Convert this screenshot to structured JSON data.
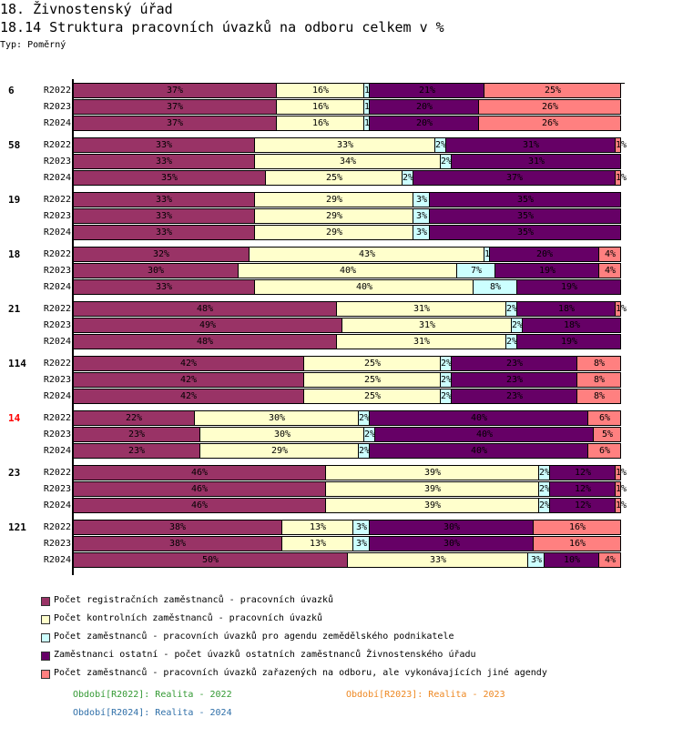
{
  "header": {
    "section_title": "18. Živnostenský úřad",
    "chart_title": "18.14 Struktura pracovních úvazků na odboru celkem v %",
    "type_label": "Typ: Poměrný"
  },
  "chart_data": {
    "type": "bar",
    "orientation": "horizontal",
    "stacking": "percent",
    "title": "18.14 Struktura pracovních úvazků na odboru celkem v %",
    "xlabel": "",
    "ylabel": "",
    "xlim": [
      0,
      100
    ],
    "value_suffix": "%",
    "grid": false,
    "legend_position": "bottom",
    "highlight_color": "#FF0000",
    "series": [
      {
        "name": "Počet registračních zaměstnanců - pracovních úvazků",
        "color": "#993366"
      },
      {
        "name": "Počet kontrolních zaměstnanců - pracovních úvazků",
        "color": "#FFFFCC"
      },
      {
        "name": "Počet zaměstnanců - pracovních úvazků pro agendu zemědělského podnikatele",
        "color": "#CCFFFF"
      },
      {
        "name": "Zaměstnanci ostatní - počet úvazků ostatních zaměstnanců Živnostenského úřadu",
        "color": "#660066"
      },
      {
        "name": "Počet zaměstnanců - pracovních úvazků zařazených na odboru, ale vykonávajících jiné agendy",
        "color": "#FF8080"
      }
    ],
    "groups": [
      {
        "label": "6",
        "highlight": false,
        "rows": [
          {
            "period": "R2022",
            "values": [
              37,
              16,
              1,
              21,
              25
            ]
          },
          {
            "period": "R2023",
            "values": [
              37,
              16,
              1,
              20,
              26
            ]
          },
          {
            "period": "R2024",
            "values": [
              37,
              16,
              1,
              20,
              26
            ]
          }
        ]
      },
      {
        "label": "58",
        "highlight": false,
        "rows": [
          {
            "period": "R2022",
            "values": [
              33,
              33,
              2,
              31,
              1
            ]
          },
          {
            "period": "R2023",
            "values": [
              33,
              34,
              2,
              31,
              0
            ]
          },
          {
            "period": "R2024",
            "values": [
              35,
              25,
              2,
              37,
              1
            ]
          }
        ]
      },
      {
        "label": "19",
        "highlight": false,
        "rows": [
          {
            "period": "R2022",
            "values": [
              33,
              29,
              3,
              35,
              0
            ]
          },
          {
            "period": "R2023",
            "values": [
              33,
              29,
              3,
              35,
              0
            ]
          },
          {
            "period": "R2024",
            "values": [
              33,
              29,
              3,
              35,
              0
            ]
          }
        ]
      },
      {
        "label": "18",
        "highlight": false,
        "rows": [
          {
            "period": "R2022",
            "values": [
              32,
              43,
              1,
              20,
              4
            ]
          },
          {
            "period": "R2023",
            "values": [
              30,
              40,
              7,
              19,
              4
            ]
          },
          {
            "period": "R2024",
            "values": [
              33,
              40,
              8,
              19,
              0
            ]
          }
        ]
      },
      {
        "label": "21",
        "highlight": false,
        "rows": [
          {
            "period": "R2022",
            "values": [
              48,
              31,
              2,
              18,
              1
            ]
          },
          {
            "period": "R2023",
            "values": [
              49,
              31,
              2,
              18,
              0
            ]
          },
          {
            "period": "R2024",
            "values": [
              48,
              31,
              2,
              19,
              0
            ]
          }
        ]
      },
      {
        "label": "114",
        "highlight": false,
        "rows": [
          {
            "period": "R2022",
            "values": [
              42,
              25,
              2,
              23,
              8
            ]
          },
          {
            "period": "R2023",
            "values": [
              42,
              25,
              2,
              23,
              8
            ]
          },
          {
            "period": "R2024",
            "values": [
              42,
              25,
              2,
              23,
              8
            ]
          }
        ]
      },
      {
        "label": "14",
        "highlight": true,
        "rows": [
          {
            "period": "R2022",
            "values": [
              22,
              30,
              2,
              40,
              6
            ]
          },
          {
            "period": "R2023",
            "values": [
              23,
              30,
              2,
              40,
              5
            ]
          },
          {
            "period": "R2024",
            "values": [
              23,
              29,
              2,
              40,
              6
            ]
          }
        ]
      },
      {
        "label": "23",
        "highlight": false,
        "rows": [
          {
            "period": "R2022",
            "values": [
              46,
              39,
              2,
              12,
              1
            ]
          },
          {
            "period": "R2023",
            "values": [
              46,
              39,
              2,
              12,
              1
            ]
          },
          {
            "period": "R2024",
            "values": [
              46,
              39,
              2,
              12,
              1
            ]
          }
        ]
      },
      {
        "label": "121",
        "highlight": false,
        "rows": [
          {
            "period": "R2022",
            "values": [
              38,
              13,
              3,
              30,
              16
            ]
          },
          {
            "period": "R2023",
            "values": [
              38,
              13,
              3,
              30,
              16
            ]
          },
          {
            "period": "R2024",
            "values": [
              50,
              33,
              3,
              10,
              4
            ]
          }
        ]
      }
    ]
  },
  "period_legend": [
    {
      "label": "Období[R2022]: Realita - 2022",
      "color": "#339933"
    },
    {
      "label": "Období[R2023]: Realita - 2023",
      "color": "#EE8822"
    },
    {
      "label": "Období[R2024]: Realita - 2024",
      "color": "#2F6FA8"
    }
  ]
}
